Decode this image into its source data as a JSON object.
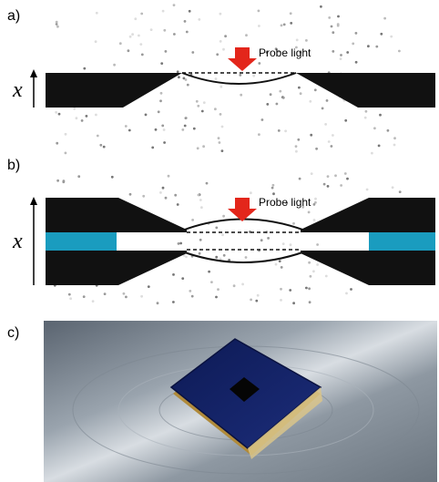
{
  "panels": [
    {
      "label": "a)",
      "annotation": "Probe light",
      "axis_label": "x"
    },
    {
      "label": "b)",
      "annotation": "Probe light",
      "axis_label": "x"
    },
    {
      "label": "c)"
    }
  ]
}
